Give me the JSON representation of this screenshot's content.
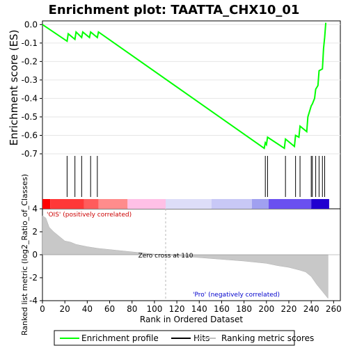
{
  "chart_data": {
    "type": "line",
    "title": "Enrichment plot: TAATTA_CHX10_01",
    "xlabel": "Rank in Ordered Dataset",
    "ylabel_es": "Enrichment score (ES)",
    "ylabel_metric": "Ranked list metric (log2_Ratio_of_Classes)",
    "xlim": [
      0,
      266
    ],
    "x_ticks": [
      "0",
      "20",
      "40",
      "60",
      "80",
      "100",
      "120",
      "140",
      "160",
      "180",
      "200",
      "220",
      "240",
      "260"
    ],
    "es_ylim": [
      -0.7,
      0.02
    ],
    "es_ticks": [
      "0.0",
      "-0.1",
      "-0.2",
      "-0.3",
      "-0.4",
      "-0.5",
      "-0.6",
      "-0.7"
    ],
    "metric_ylim": [
      -4,
      4
    ],
    "metric_ticks": [
      "4",
      "2",
      "0",
      "-2",
      "-4"
    ],
    "enrichment_profile": {
      "name": "Enrichment profile",
      "color": "#00ff00",
      "x": [
        0,
        22,
        23,
        29,
        30,
        35,
        36,
        42,
        43,
        49,
        50,
        198,
        199,
        200,
        201,
        216,
        217,
        225,
        226,
        229,
        230,
        236,
        237,
        240,
        241,
        243,
        244,
        246,
        247,
        250,
        251,
        252,
        253
      ],
      "y": [
        0.0,
        -0.09,
        -0.05,
        -0.08,
        -0.04,
        -0.07,
        -0.04,
        -0.07,
        -0.04,
        -0.07,
        -0.04,
        -0.67,
        -0.64,
        -0.65,
        -0.61,
        -0.67,
        -0.62,
        -0.66,
        -0.6,
        -0.61,
        -0.55,
        -0.58,
        -0.5,
        -0.44,
        -0.43,
        -0.4,
        -0.35,
        -0.33,
        -0.25,
        -0.24,
        -0.13,
        -0.07,
        0.01
      ]
    },
    "hits": {
      "name": "Hits",
      "x": [
        22,
        29,
        35,
        43,
        49,
        199,
        201,
        217,
        226,
        230,
        240,
        241,
        244,
        247,
        250,
        252
      ]
    },
    "ranked_metric": {
      "name": "Ranking metric scores",
      "x": [
        0,
        3,
        6,
        10,
        15,
        20,
        25,
        30,
        40,
        50,
        60,
        70,
        80,
        90,
        100,
        110,
        120,
        140,
        160,
        180,
        190,
        200,
        210,
        220,
        230,
        235,
        240,
        245,
        250,
        255
      ],
      "y": [
        3.4,
        3.2,
        2.4,
        2.0,
        1.6,
        1.2,
        1.1,
        0.9,
        0.7,
        0.55,
        0.45,
        0.35,
        0.25,
        0.15,
        0.05,
        0.0,
        -0.1,
        -0.25,
        -0.4,
        -0.55,
        -0.65,
        -0.75,
        -0.95,
        -1.1,
        -1.35,
        -1.5,
        -1.9,
        -2.6,
        -3.2,
        -3.8
      ]
    },
    "zero_cross_label": "Zero cross at 110",
    "zero_cross_x": 110,
    "pos_label": "'OIS' (positively correlated)",
    "neg_label": "'Pro' (negatively correlated)",
    "pos_color": "#cc0000",
    "neg_color": "#0000cc",
    "heatmap_segments": [
      {
        "x0": 0,
        "x1": 7,
        "color": "#ff0000"
      },
      {
        "x0": 7,
        "x1": 37,
        "color": "#ff3838"
      },
      {
        "x0": 37,
        "x1": 50,
        "color": "#ff5c5c"
      },
      {
        "x0": 50,
        "x1": 76,
        "color": "#ff8c8c"
      },
      {
        "x0": 76,
        "x1": 110,
        "color": "#ffc0e6"
      },
      {
        "x0": 110,
        "x1": 151,
        "color": "#ddddf8"
      },
      {
        "x0": 151,
        "x1": 187,
        "color": "#c8c8f6"
      },
      {
        "x0": 187,
        "x1": 202,
        "color": "#a0a0f0"
      },
      {
        "x0": 202,
        "x1": 240,
        "color": "#6a50f0"
      },
      {
        "x0": 240,
        "x1": 256,
        "color": "#2000d0"
      }
    ],
    "legend": [
      {
        "label": "Enrichment profile",
        "color": "#00ff00"
      },
      {
        "label": "Hits",
        "color": "#000000"
      },
      {
        "label": "Ranking metric scores",
        "color": "#c0c0c0"
      }
    ]
  }
}
